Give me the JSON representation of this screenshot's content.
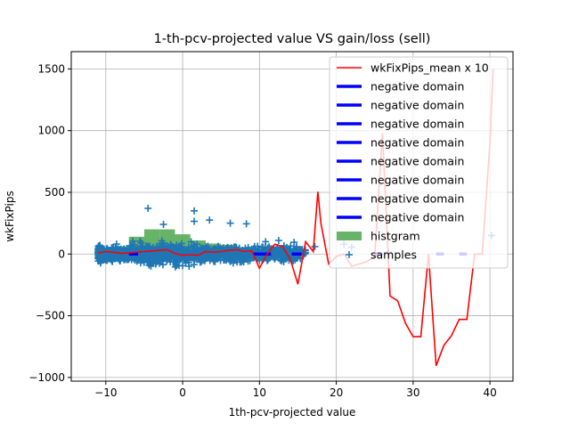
{
  "chart_data": {
    "type": "scatter",
    "title": "1-th-pcv-projected value VS gain/loss (sell)",
    "xlabel": "1th-pcv-projected value",
    "ylabel": "wkFixPips",
    "xlim": [
      -14.5,
      43
    ],
    "ylim": [
      -1030,
      1640
    ],
    "xticks": [
      -10,
      0,
      10,
      20,
      30,
      40
    ],
    "yticks": [
      -1000,
      -500,
      0,
      500,
      1000,
      1500
    ],
    "grid": true,
    "legend_position": "top-right",
    "legend": [
      {
        "label": "wkFixPips_mean x 10",
        "kind": "line",
        "color": "#ff0000"
      },
      {
        "label": "negative domain",
        "kind": "thickline",
        "color": "#0000ff"
      },
      {
        "label": "negative domain",
        "kind": "thickline",
        "color": "#0000ff"
      },
      {
        "label": "negative domain",
        "kind": "thickline",
        "color": "#0000ff"
      },
      {
        "label": "negative domain",
        "kind": "thickline",
        "color": "#0000ff"
      },
      {
        "label": "negative domain",
        "kind": "thickline",
        "color": "#0000ff"
      },
      {
        "label": "negative domain",
        "kind": "thickline",
        "color": "#0000ff"
      },
      {
        "label": "negative domain",
        "kind": "thickline",
        "color": "#0000ff"
      },
      {
        "label": "negative domain",
        "kind": "thickline",
        "color": "#0000ff"
      },
      {
        "label": "histgram",
        "kind": "patch",
        "color": "#4ca64c"
      },
      {
        "label": "samples",
        "kind": "marker",
        "color": "#1f77b4"
      }
    ],
    "series": [
      {
        "name": "wkFixPips_mean x 10",
        "type": "line",
        "color": "#ff0000",
        "x": [
          -11,
          -10,
          -9,
          -8,
          -7,
          -6,
          -5,
          -4,
          -3,
          -2,
          -1,
          0,
          1,
          2,
          3,
          4,
          5,
          6,
          7,
          8,
          9,
          10,
          11,
          12,
          13,
          14,
          15,
          16,
          17,
          17.6,
          18,
          19,
          20,
          21,
          22,
          23,
          24,
          25,
          26,
          27,
          28,
          29,
          30,
          31,
          32,
          33,
          34,
          35,
          36,
          37,
          38,
          39,
          40,
          40.4
        ],
        "y": [
          10,
          20,
          15,
          5,
          10,
          15,
          20,
          25,
          30,
          35,
          5,
          -10,
          -5,
          -10,
          20,
          15,
          20,
          30,
          35,
          20,
          25,
          -115,
          0,
          80,
          60,
          -40,
          -245,
          100,
          20,
          505,
          250,
          -80,
          -20,
          0,
          -100,
          -80,
          -60,
          -20,
          980,
          -340,
          -380,
          -560,
          -670,
          -670,
          0,
          -905,
          -740,
          -660,
          -530,
          -530,
          0,
          0,
          900,
          1500
        ]
      },
      {
        "name": "negative domain",
        "type": "segments",
        "color": "#0000ff",
        "segments": [
          [
            -7,
            -5.8
          ],
          [
            9.2,
            11.5
          ],
          [
            14.2,
            15.5
          ],
          [
            25,
            26
          ],
          [
            33,
            34
          ],
          [
            36,
            37
          ]
        ]
      },
      {
        "name": "histgram",
        "type": "bar",
        "color": "#4ca64c",
        "x": [
          -10,
          -8,
          -6,
          -4,
          -2,
          0,
          2,
          4,
          6,
          8,
          10,
          12,
          14
        ],
        "values": [
          40,
          60,
          140,
          200,
          200,
          160,
          110,
          85,
          75,
          55,
          40,
          30,
          20
        ],
        "bar_width": 2
      },
      {
        "name": "samples",
        "type": "scatter",
        "marker": "+",
        "color": "#1f77b4",
        "n_points": 1400,
        "outliers": [
          {
            "x": -4.5,
            "y": 370
          },
          {
            "x": 1.5,
            "y": 350
          },
          {
            "x": 1.5,
            "y": 265
          },
          {
            "x": 3.5,
            "y": 275
          },
          {
            "x": -2.5,
            "y": 240
          },
          {
            "x": 6.2,
            "y": 250
          },
          {
            "x": 8.3,
            "y": 245
          },
          {
            "x": 10.8,
            "y": 100
          },
          {
            "x": 12.5,
            "y": 110
          },
          {
            "x": 14.5,
            "y": 95
          },
          {
            "x": 17.2,
            "y": 60
          },
          {
            "x": 21,
            "y": 80
          },
          {
            "x": 22,
            "y": 55
          },
          {
            "x": 26.8,
            "y": 15
          },
          {
            "x": 40.2,
            "y": 150
          }
        ]
      }
    ]
  }
}
